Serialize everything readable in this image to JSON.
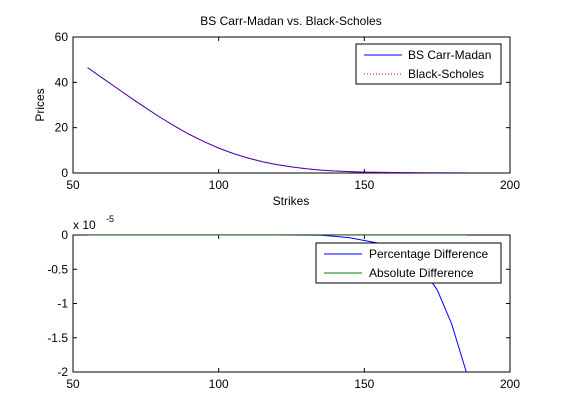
{
  "chart_data": [
    {
      "type": "line",
      "title": "BS Carr-Madan vs. Black-Scholes",
      "xlabel": "Strikes",
      "ylabel": "Prices",
      "xlim": [
        50,
        200
      ],
      "ylim": [
        0,
        60
      ],
      "xticks": [
        "50",
        "100",
        "150",
        "200"
      ],
      "yticks": [
        "0",
        "20",
        "40",
        "60"
      ],
      "grid": false,
      "legend_position": "top-right",
      "series": [
        {
          "name": "BS Carr-Madan",
          "color": "#0000ff",
          "style": "solid",
          "x": [
            55,
            60,
            65,
            70,
            75,
            80,
            85,
            90,
            95,
            100,
            105,
            110,
            115,
            120,
            125,
            130,
            135,
            140,
            145,
            150,
            160,
            170,
            185
          ],
          "values": [
            46.5,
            42.0,
            37.5,
            33.0,
            28.7,
            24.5,
            20.6,
            17.0,
            13.8,
            11.0,
            8.6,
            6.6,
            5.0,
            3.7,
            2.7,
            1.9,
            1.3,
            0.9,
            0.6,
            0.4,
            0.2,
            0.1,
            0.05
          ]
        },
        {
          "name": "Black-Scholes",
          "color": "#ff0000",
          "style": "dotted",
          "x": [
            55,
            60,
            65,
            70,
            75,
            80,
            85,
            90,
            95,
            100,
            105,
            110,
            115,
            120,
            125,
            130,
            135,
            140,
            145,
            150,
            160,
            170,
            185
          ],
          "values": [
            46.5,
            42.0,
            37.5,
            33.0,
            28.7,
            24.5,
            20.6,
            17.0,
            13.8,
            11.0,
            8.6,
            6.6,
            5.0,
            3.7,
            2.7,
            1.9,
            1.3,
            0.9,
            0.6,
            0.4,
            0.2,
            0.1,
            0.05
          ]
        }
      ]
    },
    {
      "type": "line",
      "title": "",
      "xlabel": "",
      "ylabel": "",
      "multiplier_label": "x 10",
      "multiplier_exponent": "-5",
      "xlim": [
        50,
        200
      ],
      "ylim": [
        -2,
        0
      ],
      "xticks": [
        "50",
        "100",
        "150",
        "200"
      ],
      "yticks": [
        "-2",
        "-1.5",
        "-1",
        "-0.5",
        "0"
      ],
      "grid": false,
      "legend_position": "top-right",
      "series": [
        {
          "name": "Percentage Difference",
          "color": "#0000ff",
          "style": "solid",
          "x": [
            55,
            80,
            100,
            120,
            135,
            140,
            145,
            150,
            155,
            160,
            165,
            170,
            175,
            180,
            185
          ],
          "values": [
            0,
            0,
            0,
            0,
            -0.005,
            -0.02,
            -0.04,
            -0.08,
            -0.12,
            -0.2,
            -0.32,
            -0.5,
            -0.8,
            -1.3,
            -2.0
          ]
        },
        {
          "name": "Absolute Difference",
          "color": "#007f00",
          "style": "solid",
          "x": [
            55,
            100,
            150,
            185
          ],
          "values": [
            0,
            0,
            0,
            0
          ]
        }
      ]
    }
  ]
}
